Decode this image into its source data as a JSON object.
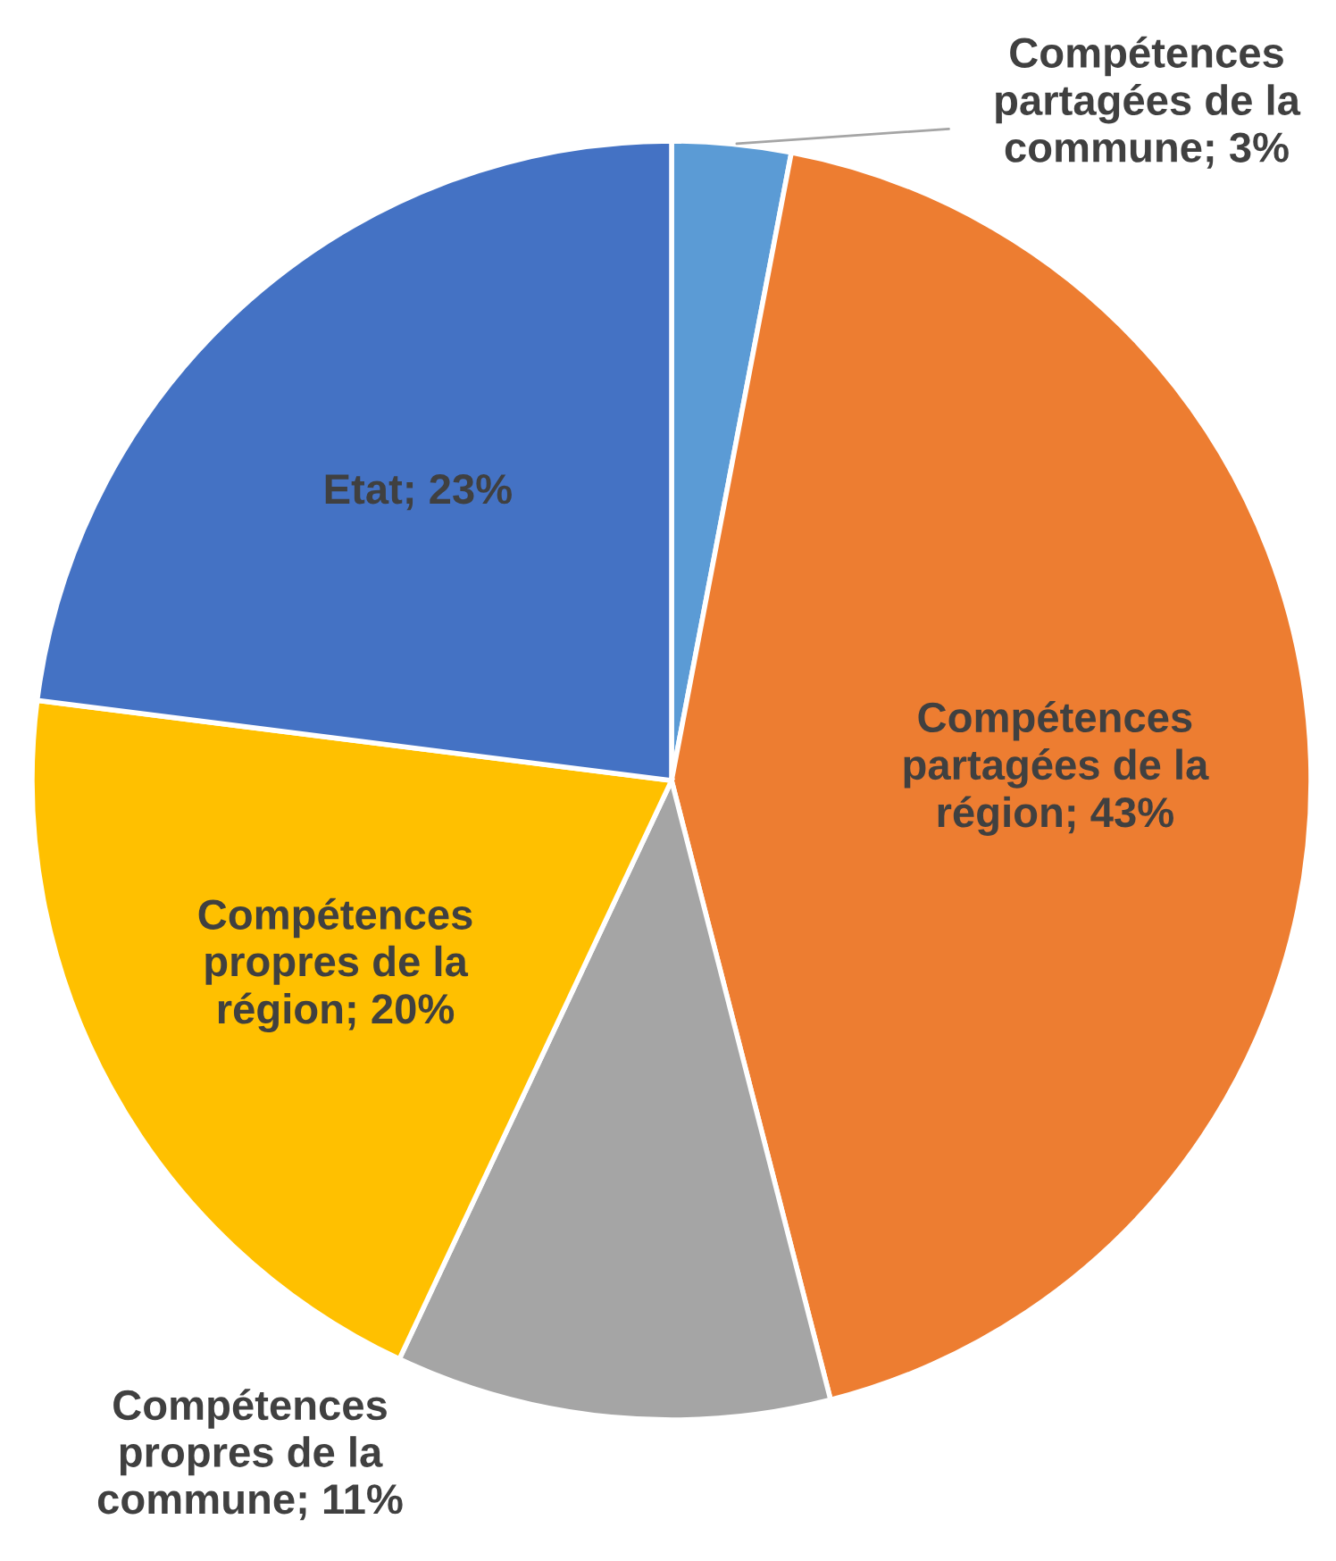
{
  "chart_data": {
    "type": "pie",
    "categories": [
      "Compétences partagées de la commune",
      "Compétences partagées de la région",
      "Compétences propres de la commune",
      "Compétences propres de la région",
      "Etat"
    ],
    "values": [
      3,
      43,
      11,
      20,
      23
    ],
    "value_labels": [
      "3%",
      "43%",
      "11%",
      "20%",
      "23%"
    ],
    "colors": [
      "#5b9bd5",
      "#ed7d31",
      "#a5a5a5",
      "#ffc000",
      "#4472c4"
    ]
  }
}
